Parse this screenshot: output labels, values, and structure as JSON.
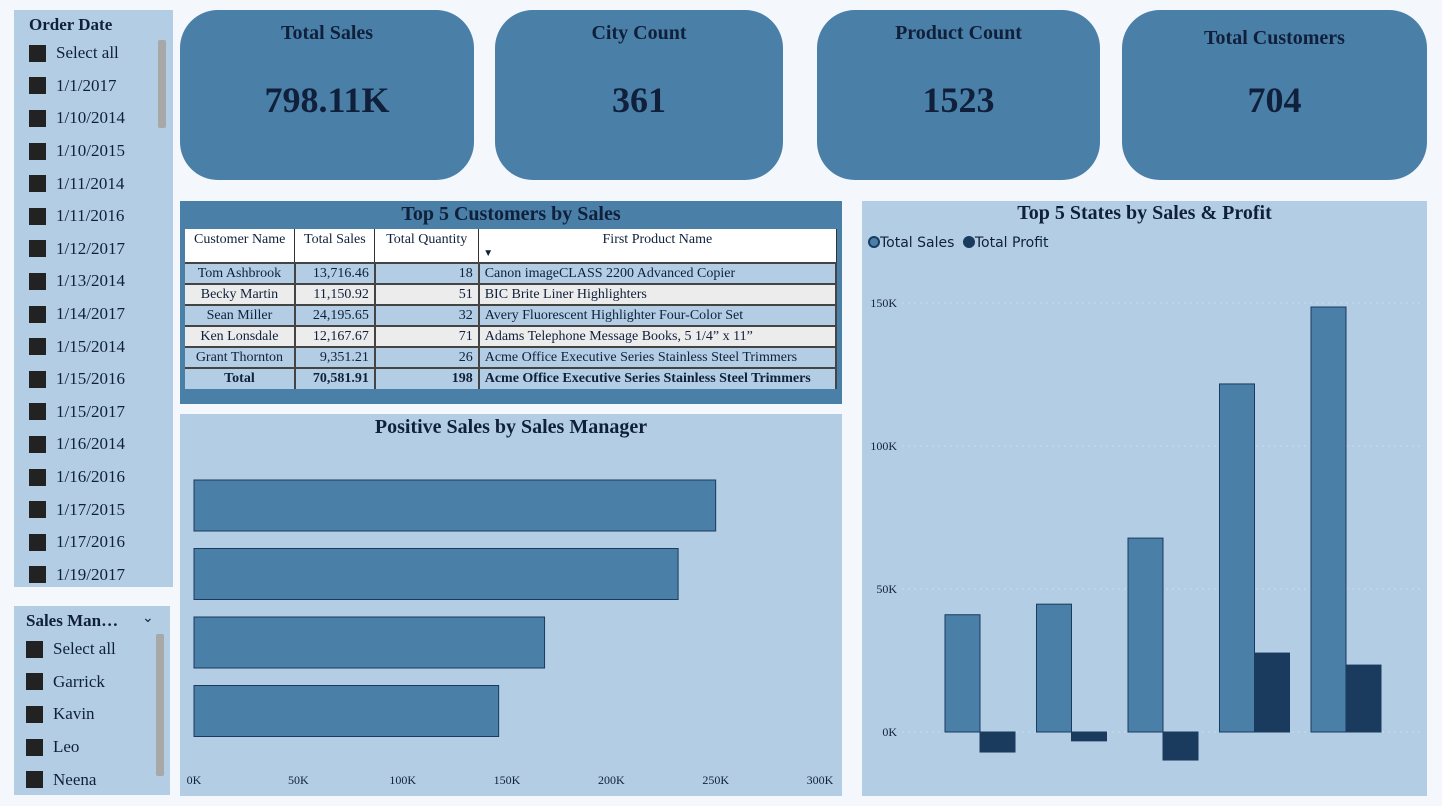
{
  "order_date_slicer": {
    "title": "Order Date",
    "items": [
      "Select all",
      "1/1/2017",
      "1/10/2014",
      "1/10/2015",
      "1/11/2014",
      "1/11/2016",
      "1/12/2017",
      "1/13/2014",
      "1/14/2017",
      "1/15/2014",
      "1/15/2016",
      "1/15/2017",
      "1/16/2014",
      "1/16/2016",
      "1/17/2015",
      "1/17/2016",
      "1/19/2017"
    ]
  },
  "sales_manager_slicer": {
    "title": "Sales Man…",
    "items": [
      "Select all",
      "Garrick",
      "Kavin",
      "Leo",
      "Neena"
    ]
  },
  "kpis": [
    {
      "title": "Total Sales",
      "value": "798.11K"
    },
    {
      "title": "City Count",
      "value": "361"
    },
    {
      "title": "Product Count",
      "value": "1523"
    },
    {
      "title": "Total Customers",
      "value": "704"
    }
  ],
  "customers_table": {
    "title": "Top 5 Customers by Sales",
    "headers": [
      "Customer Name",
      "Total Sales",
      "Total Quantity",
      "First Product Name"
    ],
    "rows": [
      [
        "Tom Ashbrook",
        "13,716.46",
        "18",
        "Canon imageCLASS 2200 Advanced Copier"
      ],
      [
        "Becky Martin",
        "11,150.92",
        "51",
        "BIC Brite Liner Highlighters"
      ],
      [
        "Sean Miller",
        "24,195.65",
        "32",
        "Avery Fluorescent Highlighter Four-Color Set"
      ],
      [
        "Ken Lonsdale",
        "12,167.67",
        "71",
        "Adams Telephone Message Books, 5 1/4” x 11”"
      ],
      [
        "Grant Thornton",
        "9,351.21",
        "26",
        "Acme Office Executive Series Stainless Steel Trimmers"
      ]
    ],
    "total": [
      "Total",
      "70,581.91",
      "198",
      "Acme Office Executive Series Stainless Steel Trimmers"
    ]
  },
  "chart_data": [
    {
      "type": "bar",
      "orientation": "horizontal",
      "title": "Positive Sales by Sales Manager",
      "values": [
        250,
        232,
        168,
        146
      ],
      "unit": "K",
      "xlim": [
        0,
        300
      ],
      "ticks": [
        "0K",
        "50K",
        "100K",
        "150K",
        "200K",
        "250K",
        "300K"
      ],
      "color": "#4a7fa8"
    },
    {
      "type": "bar",
      "title": "Top 5 States by Sales & Profit",
      "legend": "top-left",
      "ylim": [
        -15,
        160
      ],
      "ticks": [
        "0K",
        "50K",
        "100K",
        "150K"
      ],
      "series": [
        {
          "name": "Total Sales",
          "color": "#4a7fa8",
          "values": [
            41,
            44.7,
            67.8,
            121.7,
            148.6
          ]
        },
        {
          "name": "Total Profit",
          "color": "#1a3a5e",
          "values": [
            -7,
            -3.1,
            -9.8,
            27.6,
            23.4
          ]
        }
      ]
    }
  ]
}
